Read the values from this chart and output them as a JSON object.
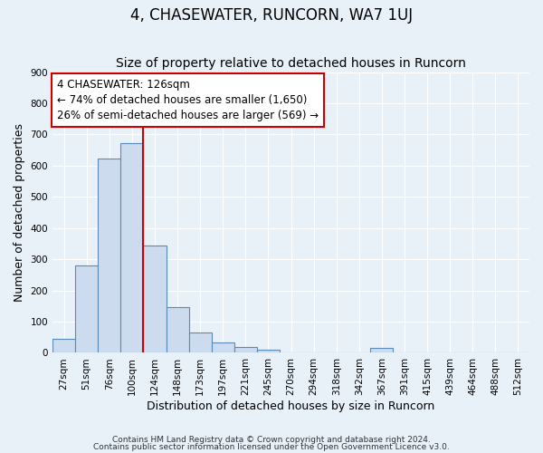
{
  "title": "4, CHASEWATER, RUNCORN, WA7 1UJ",
  "subtitle": "Size of property relative to detached houses in Runcorn",
  "xlabel": "Distribution of detached houses by size in Runcorn",
  "ylabel": "Number of detached properties",
  "bar_color": "#ccdcee",
  "bar_edge_color": "#5a8ab8",
  "bin_labels": [
    "27sqm",
    "51sqm",
    "76sqm",
    "100sqm",
    "124sqm",
    "148sqm",
    "173sqm",
    "197sqm",
    "221sqm",
    "245sqm",
    "270sqm",
    "294sqm",
    "318sqm",
    "342sqm",
    "367sqm",
    "391sqm",
    "415sqm",
    "439sqm",
    "464sqm",
    "488sqm",
    "512sqm"
  ],
  "bar_values": [
    45,
    280,
    622,
    672,
    345,
    147,
    65,
    32,
    18,
    10,
    0,
    0,
    0,
    0,
    15,
    0,
    0,
    0,
    0,
    0,
    0
  ],
  "property_bin_index": 4,
  "annotation_line1": "4 CHASEWATER: 126sqm",
  "annotation_line2": "← 74% of detached houses are smaller (1,650)",
  "annotation_line3": "26% of semi-detached houses are larger (569) →",
  "vline_color": "#cc0000",
  "annotation_box_facecolor": "#ffffff",
  "annotation_box_edgecolor": "#cc0000",
  "ylim": [
    0,
    900
  ],
  "yticks": [
    0,
    100,
    200,
    300,
    400,
    500,
    600,
    700,
    800,
    900
  ],
  "footnote1": "Contains HM Land Registry data © Crown copyright and database right 2024.",
  "footnote2": "Contains public sector information licensed under the Open Government Licence v3.0.",
  "background_color": "#e8f0f8",
  "title_fontsize": 12,
  "subtitle_fontsize": 10,
  "axis_label_fontsize": 9,
  "tick_fontsize": 7.5,
  "annotation_fontsize": 8.5,
  "footnote_fontsize": 6.5
}
